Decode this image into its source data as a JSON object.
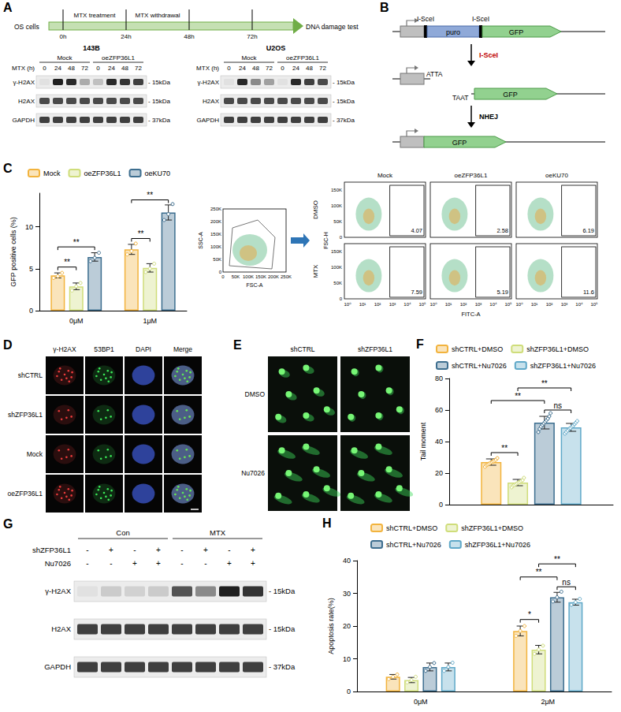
{
  "chart_data": [
    {
      "panel": "C",
      "type": "bar",
      "y_label": "GFP positive cells (%)",
      "categories": [
        "0μM",
        "1μM"
      ],
      "series": [
        {
          "name": "Mock",
          "color": "#F2B33D",
          "values": [
            4.2,
            7.3
          ],
          "errors": [
            0.3,
            0.6
          ],
          "points": [
            [
              3.9,
              4.1,
              4.5
            ],
            [
              6.7,
              7.1,
              8.0
            ]
          ]
        },
        {
          "name": "oeZFP36L1",
          "color": "#CFDD7A",
          "values": [
            2.9,
            5.1
          ],
          "errors": [
            0.4,
            0.5
          ],
          "points": [
            [
              2.4,
              2.9,
              3.3
            ],
            [
              4.6,
              5.0,
              5.6
            ]
          ]
        },
        {
          "name": "oeKU70",
          "color": "#3D6E8F",
          "values": [
            6.4,
            11.7
          ],
          "errors": [
            0.5,
            0.9
          ],
          "points": [
            [
              5.9,
              6.3,
              6.9
            ],
            [
              10.8,
              11.5,
              12.7
            ]
          ]
        }
      ],
      "ylim": [
        0,
        14
      ],
      "yticks": [
        0,
        5,
        10
      ],
      "grid": false,
      "legend": "top",
      "annotations": [
        {
          "text": "**",
          "category": "0μM",
          "from": "Mock",
          "to": "oeZFP36L1",
          "y": 5.2
        },
        {
          "text": "**",
          "category": "0μM",
          "from": "Mock",
          "to": "oeKU70",
          "y": 7.6
        },
        {
          "text": "**",
          "category": "1μM",
          "from": "Mock",
          "to": "oeZFP36L1",
          "y": 8.6
        },
        {
          "text": "**",
          "category": "1μM",
          "from": "Mock",
          "to": "oeKU70",
          "y": 13.2
        }
      ]
    },
    {
      "panel": "F",
      "type": "bar",
      "y_label": "Tail moment",
      "categories": [
        null
      ],
      "series": [
        {
          "name": "shCTRL+DMSO",
          "color": "#F2B33D",
          "values": [
            27
          ],
          "errors": [
            2
          ],
          "points": [
            [
              24,
              25,
              25.5,
              26,
              26.5,
              27,
              27.5,
              28,
              28.5,
              29.5
            ]
          ]
        },
        {
          "name": "shZFP36L1+DMSO",
          "color": "#CFDD7A",
          "values": [
            14
          ],
          "errors": [
            2
          ],
          "points": [
            [
              11,
              12,
              12.5,
              13,
              13.5,
              14,
              14.5,
              15,
              15.5,
              17
            ]
          ]
        },
        {
          "name": "shCTRL+Nu7026",
          "color": "#3D6E8F",
          "values": [
            52
          ],
          "errors": [
            4
          ],
          "points": [
            [
              46,
              48,
              49.5,
              50.5,
              51.5,
              52.5,
              53.5,
              54.5,
              56,
              58
            ]
          ]
        },
        {
          "name": "shZFP36L1+Nu7026",
          "color": "#5FA8C8",
          "values": [
            49
          ],
          "errors": [
            2.5
          ],
          "points": [
            [
              45,
              46,
              47,
              48,
              48.5,
              49.5,
              50,
              51,
              52,
              53
            ]
          ]
        }
      ],
      "ylim": [
        0,
        80
      ],
      "yticks": [
        0,
        20,
        40,
        60,
        80
      ],
      "grid": false,
      "legend": "top",
      "annotations": [
        {
          "text": "**",
          "from": "shCTRL+DMSO",
          "to": "shZFP36L1+DMSO",
          "y": 33
        },
        {
          "text": "ns",
          "from": "shCTRL+Nu7026",
          "to": "shZFP36L1+Nu7026",
          "y": 60
        },
        {
          "text": "**",
          "from": "shCTRL+DMSO",
          "to": "shCTRL+Nu7026",
          "y": 66
        },
        {
          "text": "**",
          "from": "shZFP36L1+DMSO",
          "to": "shZFP36L1+Nu7026",
          "y": 74
        }
      ]
    },
    {
      "panel": "H",
      "type": "bar",
      "y_label": "Apoptosis rate(%)",
      "categories": [
        "0μM",
        "2μM"
      ],
      "series": [
        {
          "name": "shCTRL+DMSO",
          "color": "#F2B33D",
          "values": [
            4.5,
            18.5
          ],
          "errors": [
            0.7,
            1.5
          ],
          "points": [
            [
              3.8,
              4.5,
              5.2
            ],
            [
              17,
              18.5,
              20
            ]
          ]
        },
        {
          "name": "shZFP36L1+DMSO",
          "color": "#CFDD7A",
          "values": [
            3.5,
            12.8
          ],
          "errors": [
            0.8,
            1.3
          ],
          "points": [
            [
              2.8,
              3.5,
              4.5
            ],
            [
              11.5,
              12.8,
              14
            ]
          ]
        },
        {
          "name": "shCTRL+Nu7026",
          "color": "#3D6E8F",
          "values": [
            7.5,
            28.8
          ],
          "errors": [
            1.2,
            1.5
          ],
          "points": [
            [
              6.3,
              7.5,
              8.7
            ],
            [
              27.5,
              28.8,
              30.5
            ]
          ]
        },
        {
          "name": "shZFP36L1+Nu7026",
          "color": "#5FA8C8",
          "values": [
            7.5,
            27.3
          ],
          "errors": [
            1.2,
            0.9
          ],
          "points": [
            [
              6.3,
              7.5,
              8.8
            ],
            [
              26.5,
              27.3,
              28.3
            ]
          ]
        }
      ],
      "ylim": [
        0,
        40
      ],
      "yticks": [
        0,
        10,
        20,
        30,
        40
      ],
      "grid": false,
      "legend": "top",
      "annotations": [
        {
          "text": "*",
          "category": "2μM",
          "from": "shCTRL+DMSO",
          "to": "shZFP36L1+DMSO",
          "y": 22
        },
        {
          "text": "ns",
          "category": "2μM",
          "from": "shCTRL+Nu7026",
          "to": "shZFP36L1+Nu7026",
          "y": 32
        },
        {
          "text": "**",
          "category": "2μM",
          "from": "shCTRL+DMSO",
          "to": "shCTRL+Nu7026",
          "y": 35
        },
        {
          "text": "**",
          "category": "2μM",
          "from": "shZFP36L1+DMSO",
          "to": "shZFP36L1+Nu7026",
          "y": 39
        }
      ]
    }
  ],
  "panels": {
    "A": {
      "letter": "A",
      "timeline": {
        "start": "OS cells",
        "phases": [
          "MTX treatment",
          "MTX withdrawal"
        ],
        "times": [
          "0h",
          "24h",
          "48h",
          "72h"
        ],
        "end": "DNA damage test"
      },
      "blots": [
        {
          "cell_line": "143B",
          "groups": [
            "Mock",
            "oeZFP36L1"
          ],
          "lane_title": "MTX (h)",
          "lanes": [
            "0",
            "24",
            "48",
            "72",
            "0",
            "24",
            "48",
            "72"
          ],
          "rows": [
            {
              "name": "γ-H2AX",
              "size": "- 15kDa",
              "bands": [
                0.05,
                0.95,
                0.9,
                0.3,
                0.2,
                0.9,
                0.85,
                0.8
              ]
            },
            {
              "name": "H2AX",
              "size": "- 15kDa",
              "bands": [
                0.75,
                0.75,
                0.75,
                0.75,
                0.75,
                0.75,
                0.75,
                0.75
              ]
            },
            {
              "name": "GAPDH",
              "size": "- 37kDa",
              "bands": [
                0.8,
                0.8,
                0.8,
                0.8,
                0.8,
                0.8,
                0.8,
                0.8
              ]
            }
          ]
        },
        {
          "cell_line": "U2OS",
          "groups": [
            "Mock",
            "oeZFP36L1"
          ],
          "lane_title": "MTX (h)",
          "lanes": [
            "0",
            "24",
            "48",
            "72",
            "0",
            "24",
            "48",
            "72"
          ],
          "rows": [
            {
              "name": "γ-H2AX",
              "size": "- 15kDa",
              "bands": [
                0.05,
                0.9,
                0.45,
                0.35,
                0.05,
                0.9,
                0.8,
                0.75
              ]
            },
            {
              "name": "H2AX",
              "size": "- 15kDa",
              "bands": [
                0.75,
                0.75,
                0.75,
                0.75,
                0.75,
                0.75,
                0.75,
                0.75
              ]
            },
            {
              "name": "GAPDH",
              "size": "- 37kDa",
              "bands": [
                0.8,
                0.8,
                0.8,
                0.8,
                0.8,
                0.8,
                0.8,
                0.8
              ]
            }
          ]
        }
      ]
    },
    "B": {
      "letter": "B",
      "site": "I-SceI",
      "puro": "puro",
      "gfp": "GFP",
      "cut": "I-SceI",
      "ends": [
        "ATTA",
        "TAAT"
      ],
      "repair": "NHEJ"
    },
    "flow": {
      "gate": {
        "y_label": "SSC-A",
        "x_label": "FSC-A",
        "yticks": [
          "0",
          "50K",
          "100K",
          "150K",
          "200K",
          "250K"
        ],
        "xticks": [
          "0",
          "50K",
          "100K",
          "150K",
          "200K",
          "250K"
        ]
      },
      "columns": [
        "Mock",
        "oeZFP36L1",
        "oeKU70"
      ],
      "rows": [
        "DMSO",
        "MTX"
      ],
      "y_label": "FSC-H",
      "x_label": "FITC-A",
      "yticks": [
        "0",
        "50K",
        "100K",
        "150K"
      ],
      "xticks": [
        "10⁰",
        "10¹",
        "10²",
        "10³",
        "10⁴",
        "10⁵"
      ],
      "percent": [
        [
          4.07,
          2.58,
          6.19
        ],
        [
          7.59,
          5.19,
          11.6
        ]
      ]
    },
    "D": {
      "letter": "D",
      "columns": [
        "γ-H2AX",
        "53BP1",
        "DAPI",
        "Merge"
      ],
      "rows": [
        "shCTRL",
        "shZFP36L1",
        "Mock",
        "oeZFP36L1"
      ]
    },
    "E": {
      "letter": "E",
      "columns": [
        "shCTRL",
        "shZFP36L1"
      ],
      "rows": [
        "DMSO",
        "Nu7026"
      ]
    },
    "G": {
      "letter": "G",
      "groups": [
        "Con",
        "MTX"
      ],
      "conditions": [
        {
          "name": "shZFP36L1",
          "signs": [
            "-",
            "+",
            "-",
            "+",
            "-",
            "+",
            "-",
            "+"
          ]
        },
        {
          "name": "Nu7026",
          "signs": [
            "-",
            "-",
            "+",
            "+",
            "-",
            "-",
            "+",
            "+"
          ]
        }
      ],
      "rows": [
        {
          "name": "γ-H2AX",
          "size": "- 15kDa",
          "bands": [
            0.05,
            0.15,
            0.12,
            0.15,
            0.7,
            0.45,
            0.95,
            0.85
          ]
        },
        {
          "name": "H2AX",
          "size": "- 15kDa",
          "bands": [
            0.8,
            0.8,
            0.8,
            0.8,
            0.8,
            0.8,
            0.8,
            0.8
          ]
        },
        {
          "name": "GAPDH",
          "size": "- 37kDa",
          "bands": [
            0.8,
            0.8,
            0.8,
            0.8,
            0.8,
            0.8,
            0.8,
            0.8
          ]
        }
      ]
    }
  }
}
